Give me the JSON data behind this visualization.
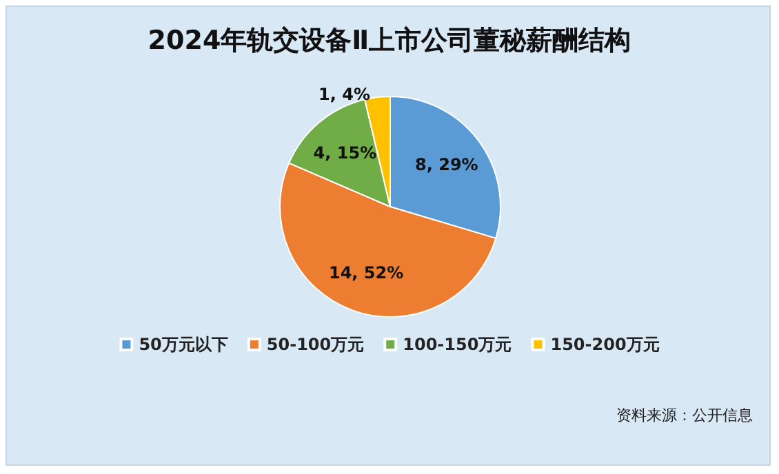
{
  "chart_data": {
    "type": "pie",
    "title": "2024年轨交设备Ⅱ上市公司董秘薪酬结构",
    "categories": [
      "50万元以下",
      "50-100万元",
      "100-150万元",
      "150-200万元"
    ],
    "values": [
      8,
      14,
      4,
      1
    ],
    "value_labels": [
      "8, 29%",
      "14, 52%",
      "4, 15%",
      "1, 4%"
    ],
    "colors": [
      "#5b9bd5",
      "#ed7d31",
      "#70ad47",
      "#ffc000"
    ],
    "legend": "bottom",
    "annotations": [
      "资料来源：公开信息"
    ]
  }
}
